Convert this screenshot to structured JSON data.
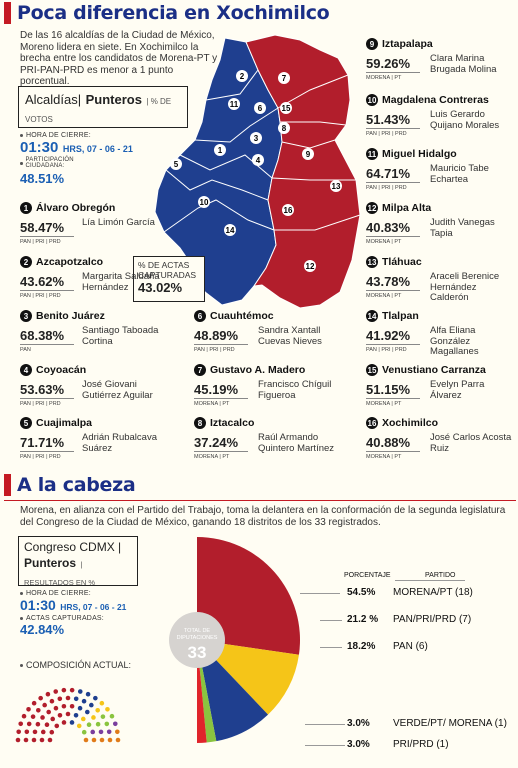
{
  "header1": "Poca diferencia en Xochimilco",
  "intro": "De las 16 alcaldías de la Ciudad de México, Moreno lidera en siete. En Xochimilco la brecha entre los candidatos de Morena-PT y PRI-PAN-PRD es menor a 1 punto porcentual.",
  "box1": {
    "title_a": "Alcaldías|",
    "title_b": "Punteros",
    "title_c": "| % DE VOTOS"
  },
  "cierre1": {
    "label": "HORA DE CIERRE:",
    "time": "01:30",
    "rest": "HRS, 07 - 06 - 21"
  },
  "part1": {
    "label": "PARTICIPACIÓN CIUDADANA:",
    "value": "48.51%"
  },
  "actas_box": {
    "label": "% DE ACTAS CAPTURADAS",
    "value": "43.02%"
  },
  "colors": {
    "morena": "#b21e2c",
    "opposition": "#1f3f8f",
    "yellow": "#f5c518",
    "green": "#8ac43f",
    "accent": "#c41a23"
  },
  "alcaldias": [
    {
      "n": "1",
      "name": "Álvaro Obregón",
      "pct": "58.47%",
      "parties": "PAN | PRI | PRD",
      "cand": "Lía Limón García"
    },
    {
      "n": "2",
      "name": "Azcapotzalco",
      "pct": "43.62%",
      "parties": "PAN | PRI | PRD",
      "cand": "Margarita Saldaña Hernández"
    },
    {
      "n": "3",
      "name": "Benito Juárez",
      "pct": "68.38%",
      "parties": "PAN",
      "cand": "Santiago Taboada Cortina"
    },
    {
      "n": "4",
      "name": "Coyoacán",
      "pct": "53.63%",
      "parties": "PAN | PRI | PRD",
      "cand": "José Giovani Gutiérrez Aguilar"
    },
    {
      "n": "5",
      "name": "Cuajimalpa",
      "pct": "71.71%",
      "parties": "PAN | PRI | PRD",
      "cand": "Adrián Rubalcava Suárez"
    },
    {
      "n": "6",
      "name": "Cuauhtémoc",
      "pct": "48.89%",
      "parties": "PAN | PRI | PRD",
      "cand": "Sandra Xantall Cuevas Nieves"
    },
    {
      "n": "7",
      "name": "Gustavo A. Madero",
      "pct": "45.19%",
      "parties": "MORENA | PT",
      "cand": "Francisco Chíguil Figueroa"
    },
    {
      "n": "8",
      "name": "Iztacalco",
      "pct": "37.24%",
      "parties": "MORENA | PT",
      "cand": "Raúl Armando Quintero Martínez"
    },
    {
      "n": "9",
      "name": "Iztapalapa",
      "pct": "59.26%",
      "parties": "MORENA | PT",
      "cand": "Clara Marina Brugada Molina"
    },
    {
      "n": "10",
      "name": "Magdalena Contreras",
      "pct": "51.43%",
      "parties": "PAN | PRI | PRD",
      "cand": "Luis Gerardo Quijano Morales"
    },
    {
      "n": "11",
      "name": "Miguel Hidalgo",
      "pct": "64.71%",
      "parties": "PAN | PRI | PRD",
      "cand": "Mauricio Tabe Echartea"
    },
    {
      "n": "12",
      "name": "Milpa Alta",
      "pct": "40.83%",
      "parties": "MORENA | PT",
      "cand": "Judith Vanegas Tapia"
    },
    {
      "n": "13",
      "name": "Tláhuac",
      "pct": "43.78%",
      "parties": "MORENA | PT",
      "cand": "Araceli Berenice Hernández Calderón"
    },
    {
      "n": "14",
      "name": "Tlalpan",
      "pct": "41.92%",
      "parties": "PAN | PRI | PRD",
      "cand": "Alfa Eliana González Magallanes"
    },
    {
      "n": "15",
      "name": "Venustiano Carranza",
      "pct": "51.15%",
      "parties": "MORENA | PT",
      "cand": "Evelyn Parra Álvarez"
    },
    {
      "n": "16",
      "name": "Xochimilco",
      "pct": "40.88%",
      "parties": "MORENA | PT",
      "cand": "José Carlos Acosta Ruiz"
    }
  ],
  "map_labels": [
    "1",
    "2",
    "3",
    "4",
    "5",
    "6",
    "7",
    "8",
    "9",
    "10",
    "11",
    "12",
    "13",
    "14",
    "15",
    "16"
  ],
  "header2": "A la cabeza",
  "intro2": "Morena, en alianza con el Partido del Trabajo, toma la delantera en la conformación de la segunda legislatura del Congreso de la Ciudad de México, ganando 18 distritos de los 33 registrados.",
  "box2": {
    "title_a": "Congreso CDMX |",
    "title_b": "Punteros",
    "title_c": "| RESULTADOS EN %"
  },
  "cierre2": {
    "label": "HORA DE CIERRE:",
    "time": "01:30",
    "rest": "HRS, 07 - 06 - 21"
  },
  "actas2": {
    "label": "ACTAS CAPTURADAS:",
    "value": "42.84%"
  },
  "composicion": "COMPOSICIÓN ACTUAL:",
  "center_label": {
    "a": "TOTAL DE",
    "b": "DIPUTACIONES",
    "value": "33"
  },
  "col_headers": {
    "pct": "PORCENTAJE",
    "party": "PARTIDO"
  },
  "chart_data": {
    "type": "pie",
    "title": "Congreso CDMX | Punteros | RESULTADOS EN %",
    "slices": [
      {
        "label": "MORENA/PT (18)",
        "value": 54.5,
        "pct_label": "54.5%",
        "color": "#b21e2c"
      },
      {
        "label": "PAN/PRI/PRD (7)",
        "value": 21.2,
        "pct_label": "21.2 %",
        "color": "#f5c518"
      },
      {
        "label": "PAN (6)",
        "value": 18.2,
        "pct_label": "18.2%",
        "color": "#1f3f8f"
      },
      {
        "label": "VERDE/PT/ MORENA (1)",
        "value": 3.0,
        "pct_label": "3.0%",
        "color": "#8ac43f"
      },
      {
        "label": "PRI/PRD (1)",
        "value": 3.0,
        "pct_label": "3.0%",
        "color": "#e0242b"
      }
    ]
  }
}
